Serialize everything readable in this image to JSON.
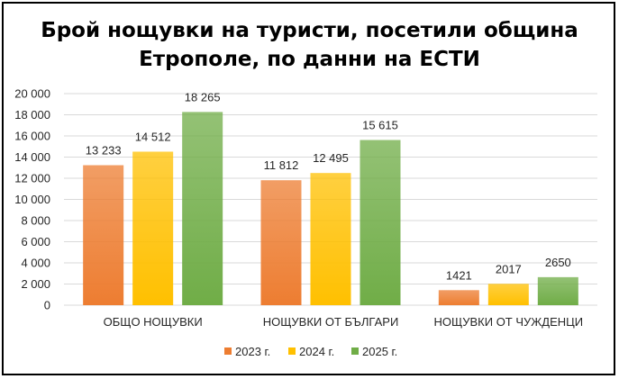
{
  "chart_data": {
    "type": "bar",
    "title": "Брой нощувки на туристи, посетили община Етрополе, по данни на ЕСТИ",
    "xlabel": "",
    "ylabel": "",
    "ylim": [
      0,
      20000
    ],
    "y_ticks": [
      "0",
      "2 000",
      "4 000",
      "6 000",
      "8 000",
      "10 000",
      "12 000",
      "14 000",
      "16 000",
      "18 000",
      "20 000"
    ],
    "categories": [
      "ОБЩО НОЩУВКИ",
      "НОЩУВКИ ОТ БЪЛГАРИ",
      "НОЩУВКИ ОТ ЧУЖДЕНЦИ"
    ],
    "series": [
      {
        "name": "2023 г.",
        "values": [
          13233,
          11812,
          1421
        ],
        "labels": [
          "13 233",
          "11 812",
          "1421"
        ],
        "color": "#ed7d31"
      },
      {
        "name": "2024 г.",
        "values": [
          14512,
          12495,
          2017
        ],
        "labels": [
          "14 512",
          "12 495",
          "2017"
        ],
        "color": "#ffc000"
      },
      {
        "name": "2025 г.",
        "values": [
          18265,
          15615,
          2650
        ],
        "labels": [
          "18 265",
          "15 615",
          "2650"
        ],
        "color": "#70ad47"
      }
    ],
    "grid": true,
    "legend_position": "bottom"
  }
}
